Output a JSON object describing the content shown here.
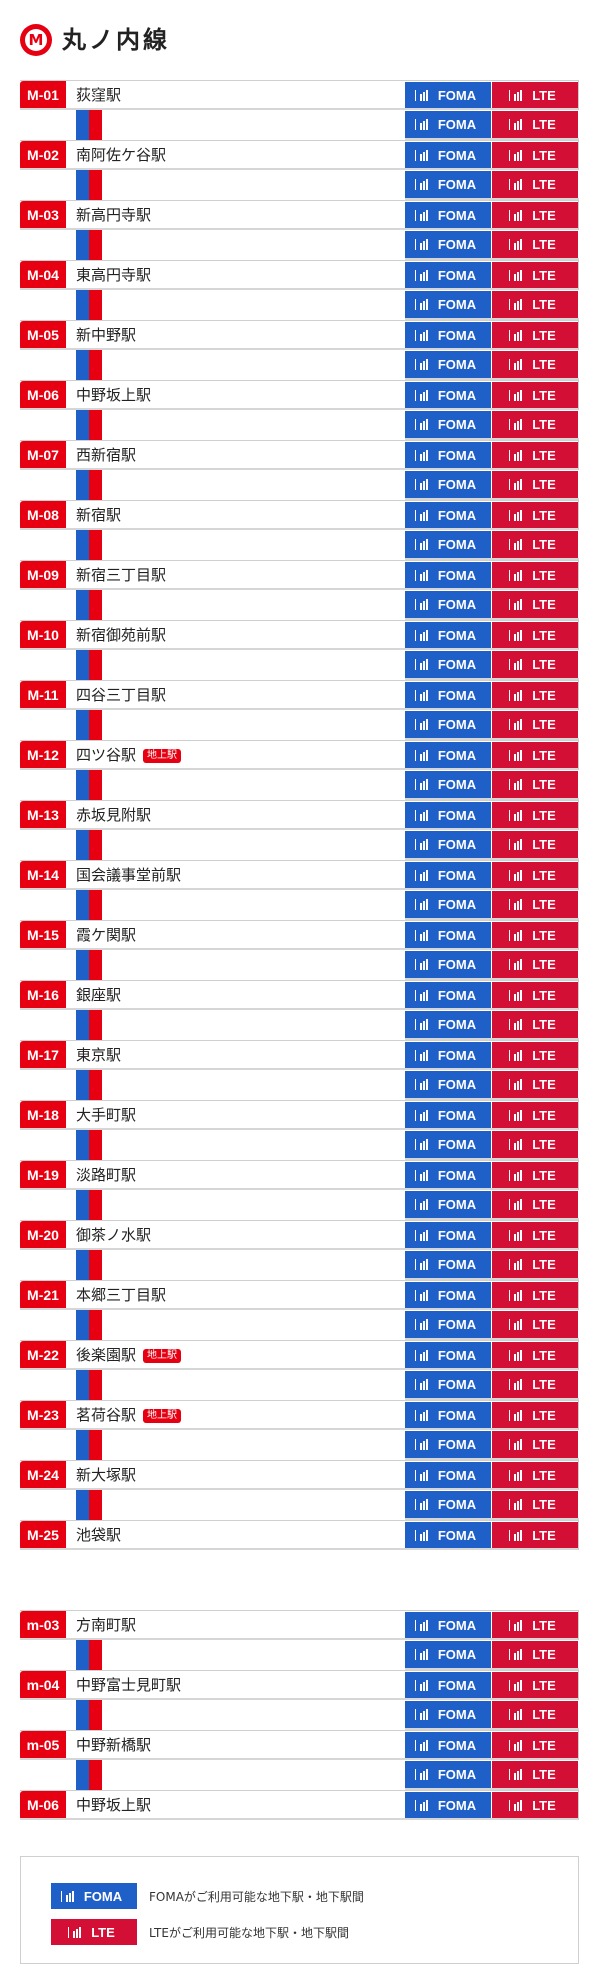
{
  "header": {
    "logo_letter": "M",
    "line_name": "丸ノ内線"
  },
  "tags": {
    "foma": "FOMA",
    "lte": "LTE"
  },
  "colors": {
    "line_red": "#e60012",
    "foma_blue": "#1f5fc8",
    "lte_red": "#d40f35"
  },
  "main_line": [
    {
      "code": "M-01",
      "name": "荻窪駅",
      "badge": ""
    },
    {
      "code": "M-02",
      "name": "南阿佐ケ谷駅",
      "badge": ""
    },
    {
      "code": "M-03",
      "name": "新高円寺駅",
      "badge": ""
    },
    {
      "code": "M-04",
      "name": "東高円寺駅",
      "badge": ""
    },
    {
      "code": "M-05",
      "name": "新中野駅",
      "badge": ""
    },
    {
      "code": "M-06",
      "name": "中野坂上駅",
      "badge": ""
    },
    {
      "code": "M-07",
      "name": "西新宿駅",
      "badge": ""
    },
    {
      "code": "M-08",
      "name": "新宿駅",
      "badge": ""
    },
    {
      "code": "M-09",
      "name": "新宿三丁目駅",
      "badge": ""
    },
    {
      "code": "M-10",
      "name": "新宿御苑前駅",
      "badge": ""
    },
    {
      "code": "M-11",
      "name": "四谷三丁目駅",
      "badge": ""
    },
    {
      "code": "M-12",
      "name": "四ツ谷駅",
      "badge": "地上駅"
    },
    {
      "code": "M-13",
      "name": "赤坂見附駅",
      "badge": ""
    },
    {
      "code": "M-14",
      "name": "国会議事堂前駅",
      "badge": ""
    },
    {
      "code": "M-15",
      "name": "霞ケ関駅",
      "badge": ""
    },
    {
      "code": "M-16",
      "name": "銀座駅",
      "badge": ""
    },
    {
      "code": "M-17",
      "name": "東京駅",
      "badge": ""
    },
    {
      "code": "M-18",
      "name": "大手町駅",
      "badge": ""
    },
    {
      "code": "M-19",
      "name": "淡路町駅",
      "badge": ""
    },
    {
      "code": "M-20",
      "name": "御茶ノ水駅",
      "badge": ""
    },
    {
      "code": "M-21",
      "name": "本郷三丁目駅",
      "badge": ""
    },
    {
      "code": "M-22",
      "name": "後楽園駅",
      "badge": "地上駅"
    },
    {
      "code": "M-23",
      "name": "茗荷谷駅",
      "badge": "地上駅"
    },
    {
      "code": "M-24",
      "name": "新大塚駅",
      "badge": ""
    },
    {
      "code": "M-25",
      "name": "池袋駅",
      "badge": ""
    }
  ],
  "branch_line": [
    {
      "code": "m-03",
      "name": "方南町駅",
      "badge": ""
    },
    {
      "code": "m-04",
      "name": "中野富士見町駅",
      "badge": ""
    },
    {
      "code": "m-05",
      "name": "中野新橋駅",
      "badge": ""
    },
    {
      "code": "M-06",
      "name": "中野坂上駅",
      "badge": ""
    }
  ],
  "legend": {
    "foma_label": "FOMA",
    "foma_text": "FOMAがご利用可能な地下駅・地下駅間",
    "lte_label": "LTE",
    "lte_text": "LTEがご利用可能な地下駅・地下駅間"
  }
}
